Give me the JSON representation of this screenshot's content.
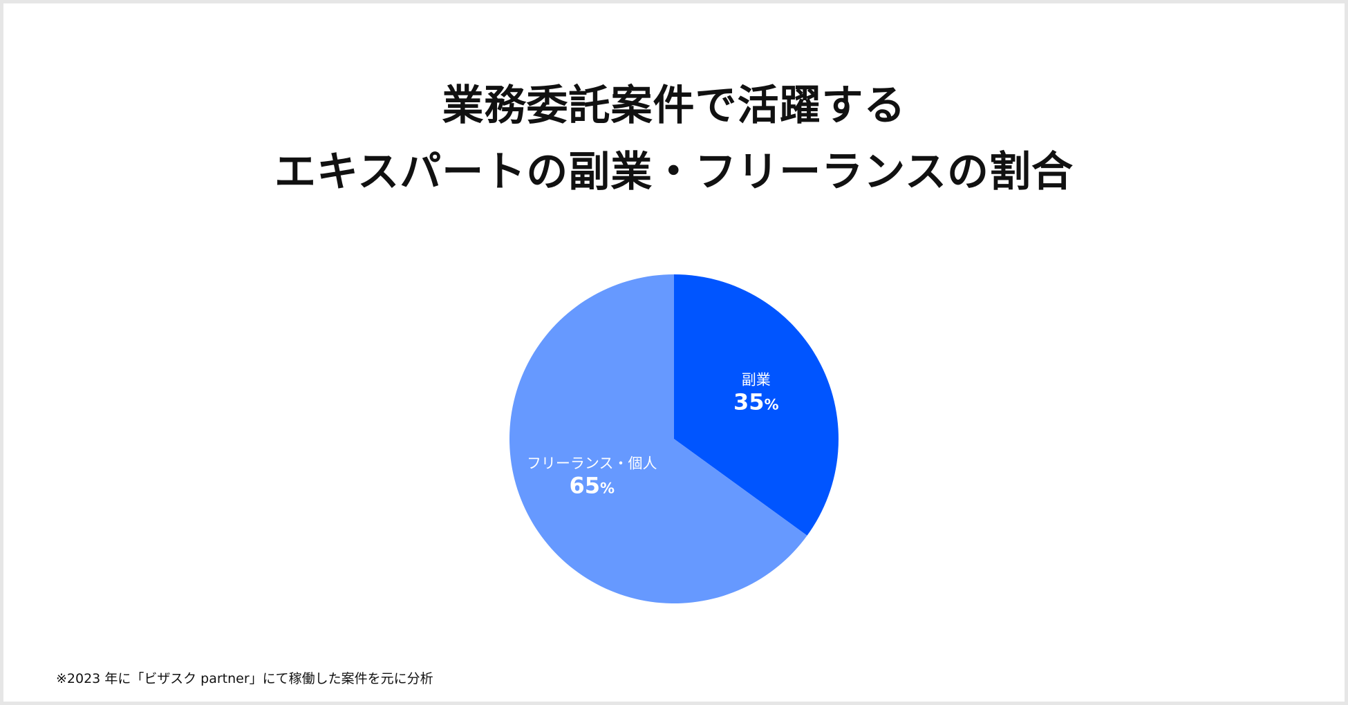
{
  "title_lines": [
    "業務委託案件で活躍する",
    "エキスパートの副業・フリーランスの割合"
  ],
  "footnote": "※2023 年に「ビザスク partner」にて稼働した案件を元に分析",
  "chart_data": {
    "type": "pie",
    "title": "業務委託案件で活躍する エキスパートの副業・フリーランスの割合",
    "slices": [
      {
        "label": "副業",
        "value": 35,
        "display": "35",
        "unit": "%",
        "color": "#0055ff",
        "label_color": "#ffffff"
      },
      {
        "label": "フリーランス・個人",
        "value": 65,
        "display": "65",
        "unit": "%",
        "color": "#6699ff",
        "label_color": "#ffffff"
      }
    ],
    "start": "12 o'clock",
    "direction": "clockwise",
    "legend": "none"
  }
}
